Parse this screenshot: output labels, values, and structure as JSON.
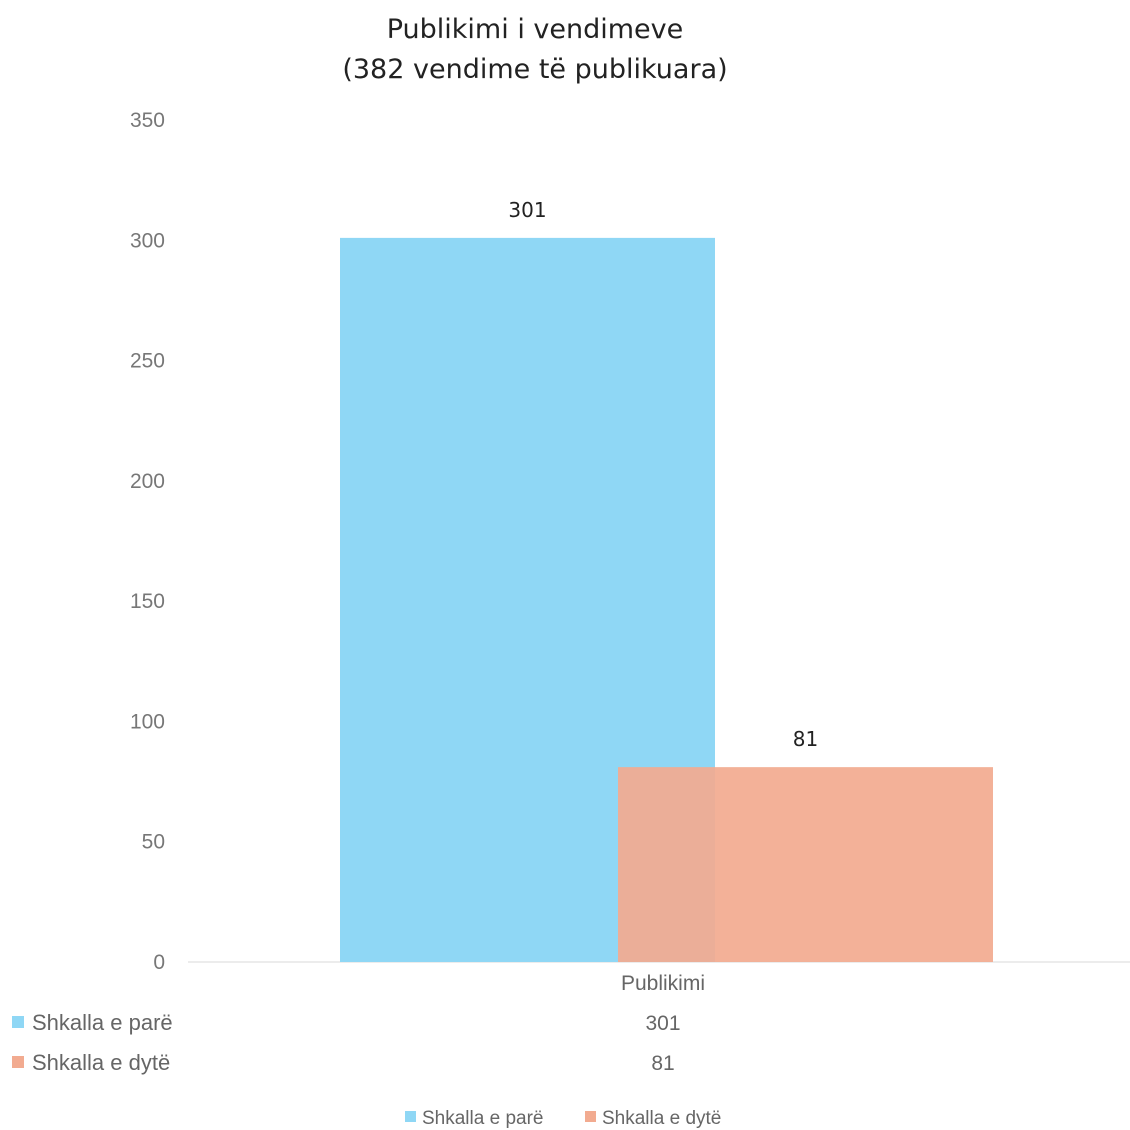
{
  "chart_data": {
    "type": "bar",
    "title": [
      "Publikimi i vendimeve",
      "(382 vendime të publikuara)"
    ],
    "categories": [
      "Publikimi"
    ],
    "series": [
      {
        "name": "Shkalla e parë",
        "values": [
          301
        ],
        "color": "#8fd7f5"
      },
      {
        "name": "Shkalla e dytë",
        "values": [
          81
        ],
        "color": "#f2ab90"
      }
    ],
    "ylim": [
      0,
      350
    ],
    "yticks": [
      0,
      50,
      100,
      150,
      200,
      250,
      300,
      350
    ],
    "grid": false,
    "data_labels": true,
    "data_table": true,
    "legend_position": "bottom"
  }
}
